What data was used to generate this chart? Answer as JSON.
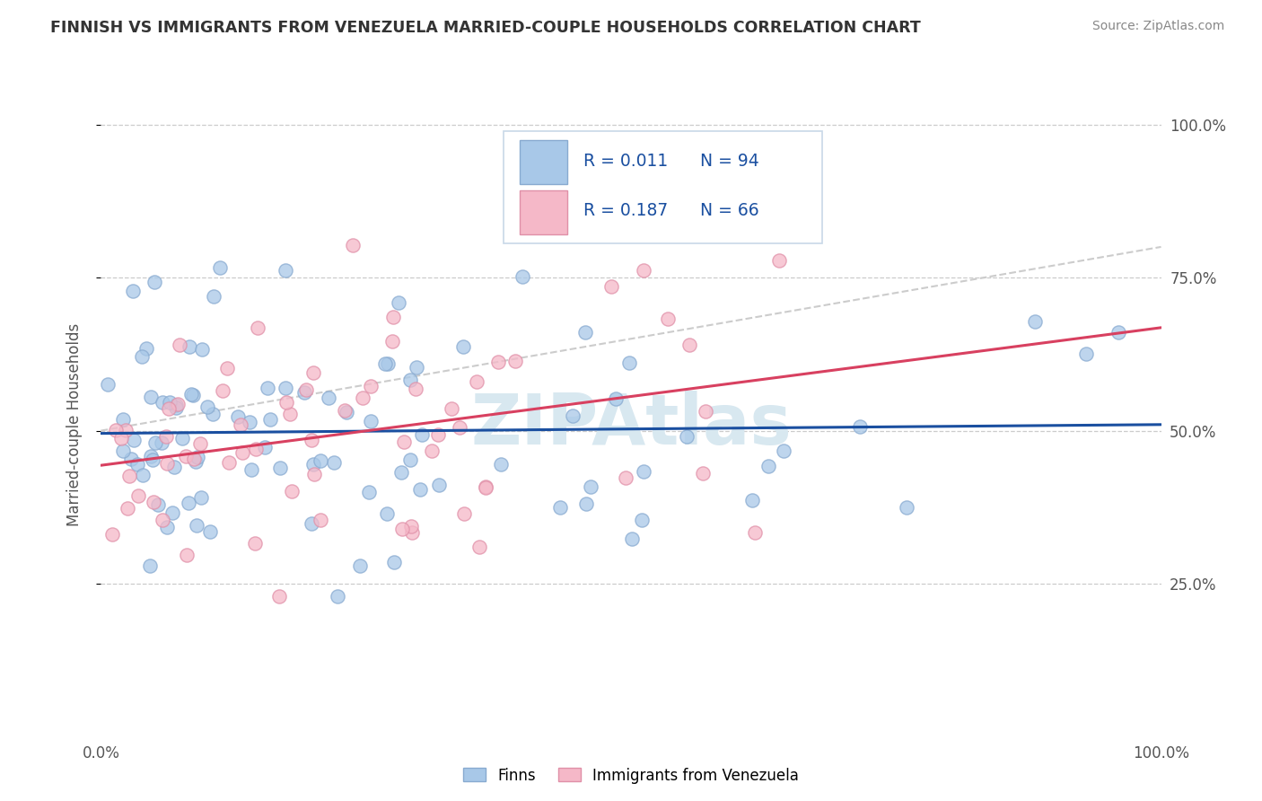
{
  "title": "FINNISH VS IMMIGRANTS FROM VENEZUELA MARRIED-COUPLE HOUSEHOLDS CORRELATION CHART",
  "source": "Source: ZipAtlas.com",
  "ylabel": "Married-couple Households",
  "R_finns": 0.011,
  "N_finns": 94,
  "R_venezuela": 0.187,
  "N_venezuela": 66,
  "finns_color": "#a8c8e8",
  "venezuela_color": "#f5b8c8",
  "finns_edge_color": "#88aad0",
  "venezuela_edge_color": "#e090a8",
  "finns_line_color": "#1a4fa0",
  "venezuela_line_color": "#d84060",
  "venezuela_dash_color": "#e090b0",
  "grid_color": "#cccccc",
  "watermark_color": "#d8e8f0",
  "legend_text_color": "#1a4fa0",
  "legend_N_color": "#e05020",
  "title_color": "#333333",
  "source_color": "#888888",
  "axis_label_color": "#555555",
  "tick_color": "#555555"
}
